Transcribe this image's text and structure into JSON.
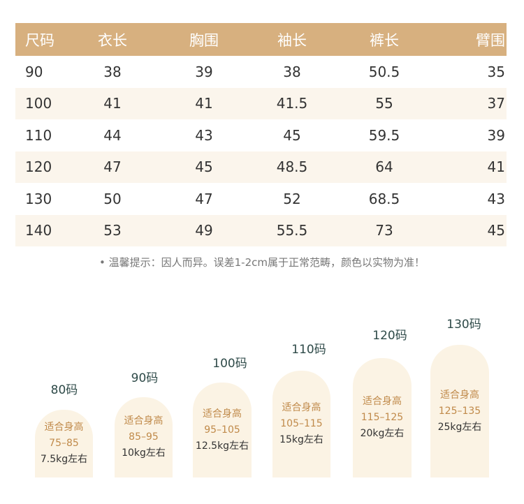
{
  "table": {
    "headers": [
      "尺码",
      "衣长",
      "胸围",
      "袖长",
      "裤长",
      "臂围"
    ],
    "rows": [
      [
        "90",
        "38",
        "39",
        "38",
        "50.5",
        "35"
      ],
      [
        "100",
        "41",
        "41",
        "41.5",
        "55",
        "37"
      ],
      [
        "110",
        "44",
        "43",
        "45",
        "59.5",
        "39"
      ],
      [
        "120",
        "47",
        "45",
        "48.5",
        "64",
        "41"
      ],
      [
        "130",
        "50",
        "47",
        "52",
        "68.5",
        "43"
      ],
      [
        "140",
        "53",
        "49",
        "55.5",
        "73",
        "45"
      ]
    ]
  },
  "note": "• 温馨提示：因人而异。误差1-2cm属于正常范畴，颜色以实物为准！",
  "sizes": [
    {
      "label": "80码",
      "fit": "适合身高",
      "height": "75–85",
      "weight": "7.5kg左右"
    },
    {
      "label": "90码",
      "fit": "适合身高",
      "height": "85–95",
      "weight": "10kg左右"
    },
    {
      "label": "100码",
      "fit": "适合身高",
      "height": "95–105",
      "weight": "12.5kg左右"
    },
    {
      "label": "110码",
      "fit": "适合身高",
      "height": "105–115",
      "weight": "15kg左右"
    },
    {
      "label": "120码",
      "fit": "适合身高",
      "height": "115–125",
      "weight": "20kg左右"
    },
    {
      "label": "130码",
      "fit": "适合身高",
      "height": "125–135",
      "weight": "25kg左右"
    }
  ]
}
